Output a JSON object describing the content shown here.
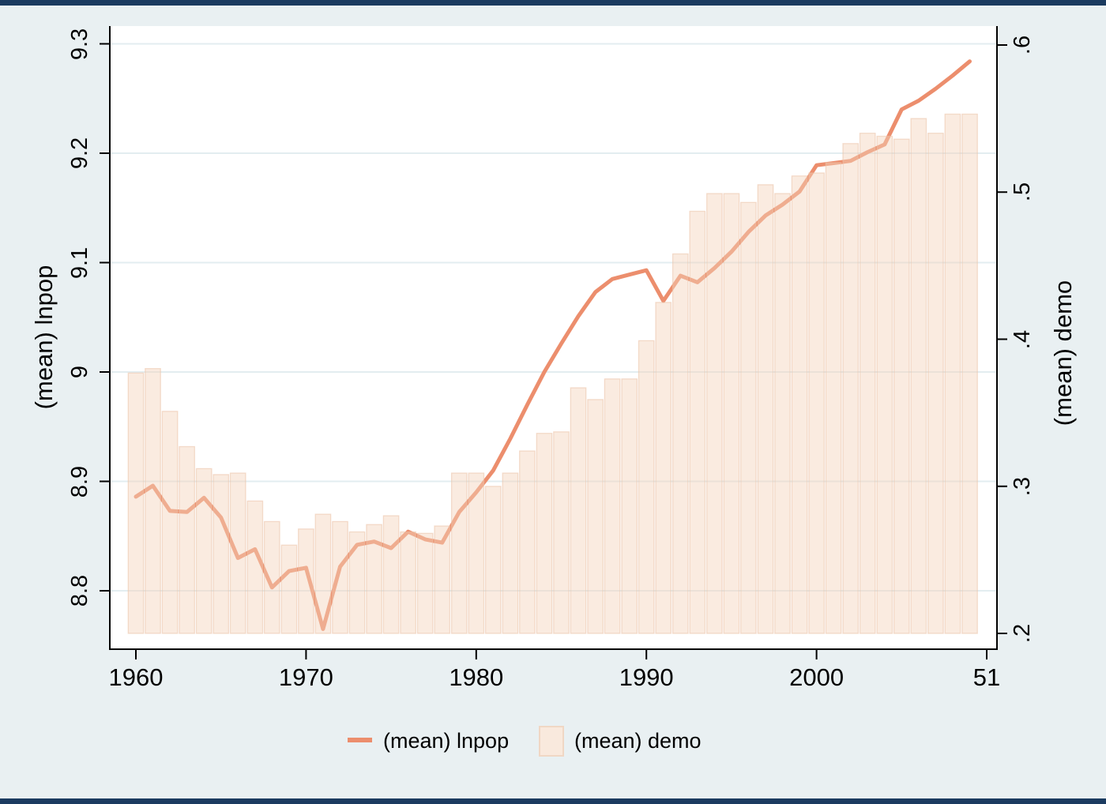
{
  "window": {
    "background_color": "#e9f0f2",
    "frame_strip_color": "#1b3b60",
    "plot_background_color": "#ffffff",
    "gridline_color": "#e3edf0",
    "axis_color": "#000000",
    "text_color": "#000000"
  },
  "chart_data": {
    "type": "line+bar dual-axis combo",
    "x_years": [
      1960,
      1961,
      1962,
      1963,
      1964,
      1965,
      1966,
      1967,
      1968,
      1969,
      1970,
      1971,
      1972,
      1973,
      1974,
      1975,
      1976,
      1977,
      1978,
      1979,
      1980,
      1981,
      1982,
      1983,
      1984,
      1985,
      1986,
      1987,
      1988,
      1989,
      1990,
      1991,
      1992,
      1993,
      1994,
      1995,
      1996,
      1997,
      1998,
      1999,
      2000,
      2001,
      2002,
      2003,
      2004,
      2005,
      2006,
      2007,
      2008,
      2009
    ],
    "series": [
      {
        "name": "(mean) lnpop",
        "type": "line",
        "y_axis": "left",
        "color": "#EC8E6D",
        "line_width": 5,
        "values": [
          8.886,
          8.896,
          8.873,
          8.872,
          8.885,
          8.867,
          8.83,
          8.838,
          8.803,
          8.818,
          8.821,
          8.765,
          8.822,
          8.842,
          8.845,
          8.839,
          8.854,
          8.847,
          8.844,
          8.872,
          8.89,
          8.91,
          8.939,
          8.97,
          9.0,
          9.026,
          9.051,
          9.073,
          9.085,
          9.089,
          9.093,
          9.065,
          9.088,
          9.082,
          9.095,
          9.11,
          9.128,
          9.143,
          9.153,
          9.165,
          9.189,
          9.191,
          9.193,
          9.201,
          9.208,
          9.24,
          9.248,
          9.259,
          9.271,
          9.284
        ]
      },
      {
        "name": "(mean) demo",
        "type": "bar",
        "y_axis": "right",
        "fill_rgba": "rgba(243,210,186,0.45)",
        "border_rgba": "rgba(235,195,168,0.55)",
        "baseline": 0.2,
        "values": [
          0.377,
          0.38,
          0.351,
          0.327,
          0.312,
          0.308,
          0.309,
          0.29,
          0.276,
          0.26,
          0.271,
          0.281,
          0.276,
          0.269,
          0.274,
          0.28,
          0.269,
          0.268,
          0.273,
          0.309,
          0.309,
          0.3,
          0.309,
          0.324,
          0.336,
          0.337,
          0.367,
          0.359,
          0.373,
          0.373,
          0.399,
          0.425,
          0.458,
          0.487,
          0.499,
          0.499,
          0.493,
          0.505,
          0.499,
          0.511,
          0.513,
          0.52,
          0.533,
          0.54,
          0.538,
          0.536,
          0.55,
          0.54,
          0.553,
          0.553
        ]
      }
    ],
    "x_axis": {
      "ticks": [
        {
          "label": "1960",
          "year": 1960
        },
        {
          "label": "1970",
          "year": 1970
        },
        {
          "label": "1980",
          "year": 1980
        },
        {
          "label": "1990",
          "year": 1990
        },
        {
          "label": "2000",
          "year": 2000
        },
        {
          "label": "51",
          "year": 2010
        }
      ]
    },
    "left_axis": {
      "title": "(mean) lnpop",
      "tick_labels": [
        "9.3",
        "9.2",
        "9.1",
        "9",
        "8.9",
        "8.8"
      ],
      "tick_values": [
        9.3,
        9.2,
        9.1,
        9.0,
        8.9,
        8.8
      ],
      "range_approx": [
        8.75,
        9.32
      ]
    },
    "right_axis": {
      "title": "(mean) demo",
      "tick_labels": [
        ".6",
        ".5",
        ".4",
        ".3",
        ".2"
      ],
      "tick_values": [
        0.6,
        0.5,
        0.4,
        0.3,
        0.2
      ],
      "range_approx": [
        0.19,
        0.61
      ]
    },
    "grid": "horizontal gridlines at left-axis tick values",
    "legend": {
      "position": "bottom-center",
      "items": [
        {
          "label": "(mean) lnpop",
          "swatch": "line"
        },
        {
          "label": "(mean) demo",
          "swatch": "bar"
        }
      ]
    }
  }
}
